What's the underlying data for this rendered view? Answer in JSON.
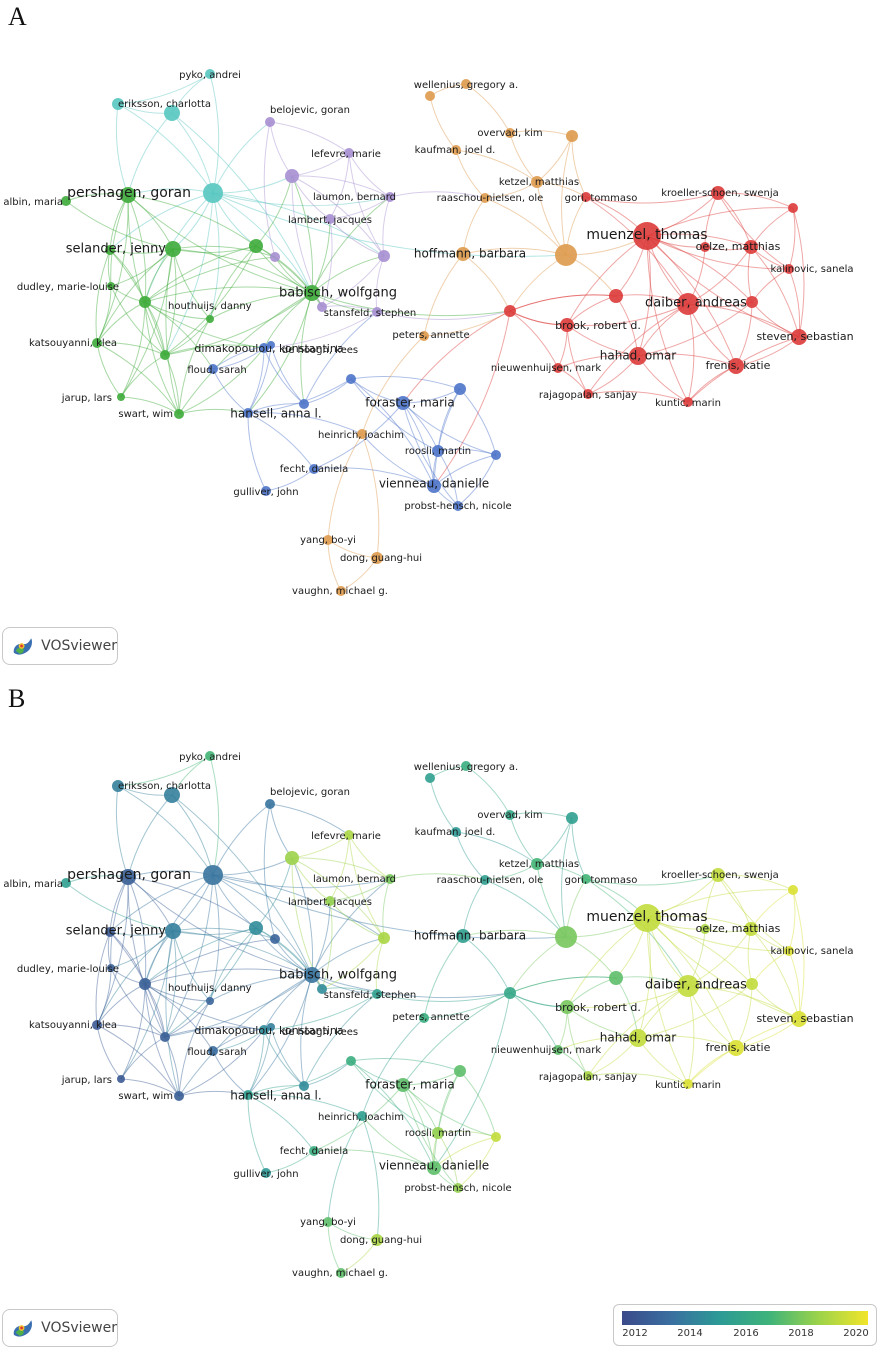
{
  "panels": [
    {
      "letter": "A",
      "mode": "cluster"
    },
    {
      "letter": "B",
      "mode": "year"
    }
  ],
  "badge_text": "VOSviewer",
  "legend": {
    "ticks": [
      "2012",
      "2014",
      "2016",
      "2018",
      "2020"
    ],
    "gradient_colors": [
      "#3b4a8a",
      "#3a6fa0",
      "#2c9b95",
      "#3fb37a",
      "#9cd34a",
      "#f2e52a"
    ]
  },
  "cluster_colors": {
    "green": "#3eab3a",
    "cyan": "#58c6c0",
    "purple": "#a68fd1",
    "blue": "#4d74c9",
    "orange": "#de9a4d",
    "red": "#dc3b3a"
  },
  "nodes": [
    {
      "label": "pyko, andrei",
      "cluster": "cyan",
      "year": 2017
    },
    {
      "label": "eriksson, charlotta",
      "cluster": "cyan",
      "year": 2014
    },
    {
      "label": "",
      "cluster": "cyan",
      "year": 2014
    },
    {
      "label": "pershagen, goran",
      "cluster": "cyan",
      "year": 2013.5
    },
    {
      "label": "albin, maria",
      "cluster": "green",
      "year": 2015.5
    },
    {
      "label": "",
      "cluster": "green",
      "year": 2012.5
    },
    {
      "label": "selander, jenny",
      "cluster": "green",
      "year": 2014
    },
    {
      "label": "",
      "cluster": "green",
      "year": 2012.3
    },
    {
      "label": "",
      "cluster": "green",
      "year": 2014.5
    },
    {
      "label": "dudley, marie-louise",
      "cluster": "green",
      "year": 2012.5
    },
    {
      "label": "houthuijs, danny",
      "cluster": "green",
      "year": 2012.5
    },
    {
      "label": "babisch, wolfgang",
      "cluster": "green",
      "year": 2013.5
    },
    {
      "label": "katsouyanni, klea",
      "cluster": "green",
      "year": 2012.3
    },
    {
      "label": "",
      "cluster": "green",
      "year": 2012.5
    },
    {
      "label": "",
      "cluster": "green",
      "year": 2012.8
    },
    {
      "label": "jarup, lars",
      "cluster": "green",
      "year": 2012.3
    },
    {
      "label": "swart, wim",
      "cluster": "green",
      "year": 2012.5
    },
    {
      "label": "belojevic, goran",
      "cluster": "purple",
      "year": 2013.5
    },
    {
      "label": "",
      "cluster": "purple",
      "year": 2012.8
    },
    {
      "label": "lefevre, marie",
      "cluster": "purple",
      "year": 2019
    },
    {
      "label": "",
      "cluster": "purple",
      "year": 2018.7
    },
    {
      "label": "laumon, bernard",
      "cluster": "purple",
      "year": 2018
    },
    {
      "label": "lambert, jacques",
      "cluster": "purple",
      "year": 2018.5
    },
    {
      "label": "",
      "cluster": "purple",
      "year": 2019
    },
    {
      "label": "stansfeld, stephen",
      "cluster": "purple",
      "year": 2015.5
    },
    {
      "label": "",
      "cluster": "purple",
      "year": 2014.5
    },
    {
      "label": "dimakopoulou, konstantina",
      "cluster": "blue",
      "year": 2014.5
    },
    {
      "label": "floud, sarah",
      "cluster": "blue",
      "year": 2013.2
    },
    {
      "label": "",
      "cluster": "blue",
      "year": 2014
    },
    {
      "label": "hansell, anna l.",
      "cluster": "blue",
      "year": 2015.5
    },
    {
      "label": "",
      "cluster": "blue",
      "year": 2014.5
    },
    {
      "label": "de hoogh, kees",
      "cluster": "blue",
      "year": 2016.5
    },
    {
      "label": "foraster, maria",
      "cluster": "blue",
      "year": 2017.5
    },
    {
      "label": "",
      "cluster": "blue",
      "year": 2017.5
    },
    {
      "label": "roosli, martin",
      "cluster": "blue",
      "year": 2018.5
    },
    {
      "label": "",
      "cluster": "blue",
      "year": 2019.5
    },
    {
      "label": "fecht, daniela",
      "cluster": "blue",
      "year": 2016.5
    },
    {
      "label": "gulliver, john",
      "cluster": "blue",
      "year": 2015
    },
    {
      "label": "vienneau, danielle",
      "cluster": "blue",
      "year": 2017.5
    },
    {
      "label": "probst-hensch, nicole",
      "cluster": "blue",
      "year": 2018.5
    },
    {
      "label": "heinrich, joachim",
      "cluster": "orange",
      "year": 2015.5
    },
    {
      "label": "wellenius, gregory a.",
      "cluster": "orange",
      "year": 2016.5
    },
    {
      "label": "",
      "cluster": "orange",
      "year": 2015.5
    },
    {
      "label": "overvad, kim",
      "cluster": "orange",
      "year": 2016
    },
    {
      "label": "",
      "cluster": "orange",
      "year": 2015.5
    },
    {
      "label": "kaufman, joel d.",
      "cluster": "orange",
      "year": 2015
    },
    {
      "label": "ketzel, matthias",
      "cluster": "orange",
      "year": 2017
    },
    {
      "label": "raaschou-nielsen, ole",
      "cluster": "orange",
      "year": 2015.5
    },
    {
      "label": "",
      "cluster": "orange",
      "year": 2018
    },
    {
      "label": "hoffmann, barbara",
      "cluster": "orange",
      "year": 2015.5
    },
    {
      "label": "peters, annette",
      "cluster": "orange",
      "year": 2016.5
    },
    {
      "label": "yang, bo-yi",
      "cluster": "orange",
      "year": 2017.5
    },
    {
      "label": "dong, guang-hui",
      "cluster": "orange",
      "year": 2019
    },
    {
      "label": "vaughn, michael g.",
      "cluster": "orange",
      "year": 2017.5
    },
    {
      "label": "gori, tommaso",
      "cluster": "red",
      "year": 2017
    },
    {
      "label": "muenzel, thomas",
      "cluster": "red",
      "year": 2019.5
    },
    {
      "label": "kroeller-schoen, swenja",
      "cluster": "red",
      "year": 2019.5
    },
    {
      "label": "",
      "cluster": "red",
      "year": 2020
    },
    {
      "label": "",
      "cluster": "red",
      "year": 2019
    },
    {
      "label": "oelze, matthias",
      "cluster": "red",
      "year": 2019.5
    },
    {
      "label": "kalinovic, sanela",
      "cluster": "red",
      "year": 2020
    },
    {
      "label": "",
      "cluster": "red",
      "year": 2017.5
    },
    {
      "label": "",
      "cluster": "red",
      "year": 2016
    },
    {
      "label": "daiber, andreas",
      "cluster": "red",
      "year": 2019.5
    },
    {
      "label": "",
      "cluster": "red",
      "year": 2019.5
    },
    {
      "label": "brook, robert d.",
      "cluster": "red",
      "year": 2018
    },
    {
      "label": "hahad, omar",
      "cluster": "red",
      "year": 2019.5
    },
    {
      "label": "steven, sebastian",
      "cluster": "red",
      "year": 2020
    },
    {
      "label": "nieuwenhuijsen, mark",
      "cluster": "red",
      "year": 2017.5
    },
    {
      "label": "frenis, katie",
      "cluster": "red",
      "year": 2020
    },
    {
      "label": "rajagopalan, sanjay",
      "cluster": "red",
      "year": 2019
    },
    {
      "label": "kuntic, marin",
      "cluster": "red",
      "year": 2020
    }
  ]
}
